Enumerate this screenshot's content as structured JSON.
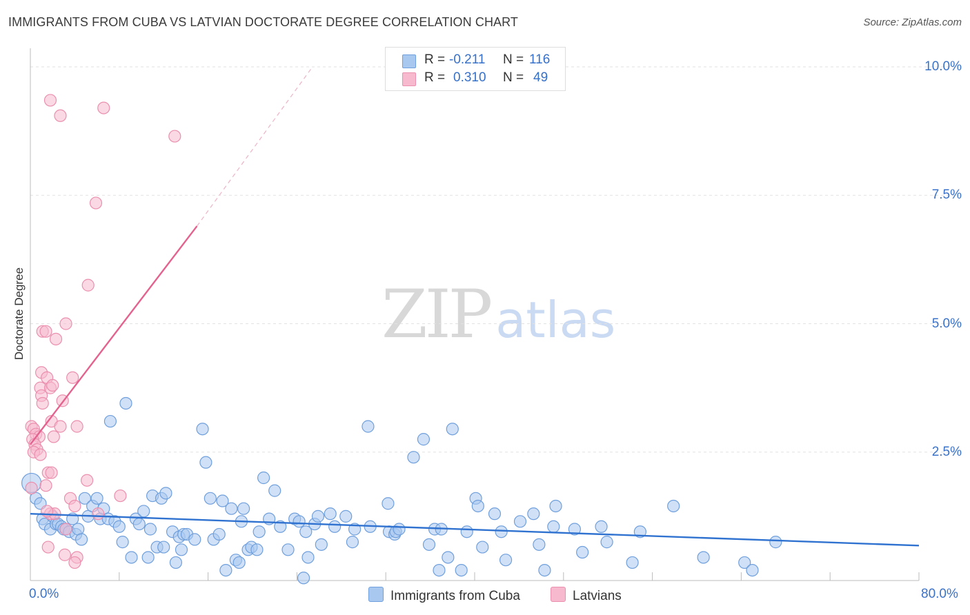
{
  "header": {
    "title": "IMMIGRANTS FROM CUBA VS LATVIAN DOCTORATE DEGREE CORRELATION CHART",
    "source": "Source: ZipAtlas.com"
  },
  "watermark": {
    "zip": "ZIP",
    "atlas": "atlas"
  },
  "legend": {
    "r_label": "R =",
    "n_label": "N =",
    "rows": [
      {
        "r": "-0.211",
        "n": "116",
        "color": "#a9c8f0"
      },
      {
        "r": "0.310",
        "n": "49",
        "color": "#f7b9cd"
      }
    ]
  },
  "series_labels": {
    "cuba": "Immigrants from Cuba",
    "latvians": "Latvians"
  },
  "colors": {
    "cuba_fill": "#a9c8f0",
    "cuba_stroke": "#6f9fdc",
    "cuba_line": "#2f72d0",
    "latvian_fill": "#f7b9cd",
    "latvian_stroke": "#ea8fae",
    "latvian_line": "#e3628f",
    "tick_text": "#3a72c8"
  },
  "chart_data": {
    "type": "scatter",
    "title": "IMMIGRANTS FROM CUBA VS LATVIAN DOCTORATE DEGREE CORRELATION CHART",
    "xlabel": "",
    "ylabel": "Doctorate Degree",
    "xlim": [
      0,
      80
    ],
    "ylim": [
      0,
      10.2
    ],
    "x_tick_labels": {
      "min": "0.0%",
      "max": "80.0%"
    },
    "y_ticks": [
      {
        "value": 2.5,
        "label": "2.5%"
      },
      {
        "value": 5.0,
        "label": "5.0%"
      },
      {
        "value": 7.5,
        "label": "7.5%"
      },
      {
        "value": 10.0,
        "label": "10.0%"
      }
    ],
    "grid": true,
    "series": [
      {
        "name": "Immigrants from Cuba",
        "r": -0.211,
        "n": 116,
        "trend": {
          "x0": 0,
          "y0": 1.3,
          "x1": 80,
          "y1": 0.68
        },
        "points": [
          [
            0.1,
            1.9
          ],
          [
            0.5,
            1.6
          ],
          [
            0.9,
            1.5
          ],
          [
            1.1,
            1.2
          ],
          [
            1.3,
            1.1
          ],
          [
            1.8,
            1.0
          ],
          [
            2.0,
            1.25
          ],
          [
            2.3,
            1.1
          ],
          [
            2.5,
            1.1
          ],
          [
            2.8,
            1.05
          ],
          [
            3.0,
            1.0
          ],
          [
            3.2,
            1.0
          ],
          [
            3.5,
            0.95
          ],
          [
            3.8,
            1.2
          ],
          [
            4.1,
            0.9
          ],
          [
            4.3,
            1.0
          ],
          [
            4.6,
            0.8
          ],
          [
            4.9,
            1.6
          ],
          [
            5.2,
            1.25
          ],
          [
            5.6,
            1.45
          ],
          [
            6.0,
            1.6
          ],
          [
            6.3,
            1.2
          ],
          [
            6.6,
            1.4
          ],
          [
            7.0,
            1.2
          ],
          [
            7.2,
            3.1
          ],
          [
            7.6,
            1.15
          ],
          [
            8.0,
            1.05
          ],
          [
            8.3,
            0.75
          ],
          [
            8.6,
            3.45
          ],
          [
            9.1,
            0.45
          ],
          [
            9.5,
            1.2
          ],
          [
            9.8,
            1.1
          ],
          [
            10.2,
            1.35
          ],
          [
            10.6,
            0.45
          ],
          [
            10.8,
            1.0
          ],
          [
            11.0,
            1.65
          ],
          [
            11.4,
            0.65
          ],
          [
            11.8,
            1.6
          ],
          [
            12.0,
            0.65
          ],
          [
            12.2,
            1.7
          ],
          [
            12.8,
            0.95
          ],
          [
            13.1,
            0.35
          ],
          [
            13.4,
            0.85
          ],
          [
            13.6,
            0.6
          ],
          [
            13.8,
            0.9
          ],
          [
            14.1,
            0.9
          ],
          [
            14.8,
            0.8
          ],
          [
            15.5,
            2.95
          ],
          [
            15.8,
            2.3
          ],
          [
            16.2,
            1.6
          ],
          [
            16.5,
            0.8
          ],
          [
            17.0,
            0.9
          ],
          [
            17.3,
            1.55
          ],
          [
            17.6,
            0.2
          ],
          [
            18.1,
            1.4
          ],
          [
            18.5,
            0.4
          ],
          [
            18.8,
            0.35
          ],
          [
            19.0,
            1.15
          ],
          [
            19.2,
            1.4
          ],
          [
            19.6,
            0.6
          ],
          [
            19.9,
            0.65
          ],
          [
            20.4,
            0.6
          ],
          [
            20.6,
            0.95
          ],
          [
            21.0,
            2.0
          ],
          [
            21.5,
            1.2
          ],
          [
            22.0,
            1.75
          ],
          [
            22.5,
            1.05
          ],
          [
            23.2,
            0.6
          ],
          [
            23.8,
            1.2
          ],
          [
            24.2,
            1.15
          ],
          [
            24.6,
            0.05
          ],
          [
            24.8,
            0.95
          ],
          [
            25.0,
            0.45
          ],
          [
            25.6,
            1.1
          ],
          [
            25.9,
            1.25
          ],
          [
            26.2,
            0.7
          ],
          [
            27.0,
            1.3
          ],
          [
            27.4,
            1.05
          ],
          [
            29.0,
            0.75
          ],
          [
            28.4,
            1.25
          ],
          [
            29.2,
            1.0
          ],
          [
            30.4,
            3.0
          ],
          [
            30.6,
            1.05
          ],
          [
            32.3,
            0.95
          ],
          [
            32.8,
            0.9
          ],
          [
            32.2,
            1.5
          ],
          [
            32.9,
            0.95
          ],
          [
            33.2,
            1.0
          ],
          [
            34.5,
            2.4
          ],
          [
            35.9,
            0.7
          ],
          [
            35.4,
            2.75
          ],
          [
            36.4,
            1.0
          ],
          [
            37.0,
            1.0
          ],
          [
            36.8,
            0.2
          ],
          [
            37.6,
            0.45
          ],
          [
            38.0,
            2.95
          ],
          [
            39.3,
            0.95
          ],
          [
            38.8,
            0.2
          ],
          [
            40.1,
            1.6
          ],
          [
            40.7,
            0.65
          ],
          [
            40.3,
            1.45
          ],
          [
            41.8,
            1.3
          ],
          [
            42.4,
            0.95
          ],
          [
            42.8,
            0.4
          ],
          [
            44.1,
            1.15
          ],
          [
            45.3,
            1.3
          ],
          [
            45.8,
            0.7
          ],
          [
            46.3,
            0.2
          ],
          [
            47.1,
            1.05
          ],
          [
            47.3,
            1.45
          ],
          [
            49.0,
            1.0
          ],
          [
            49.7,
            0.55
          ],
          [
            51.4,
            1.05
          ],
          [
            51.9,
            0.75
          ],
          [
            54.9,
            0.95
          ],
          [
            54.2,
            0.35
          ],
          [
            57.9,
            1.45
          ],
          [
            60.6,
            0.45
          ],
          [
            64.3,
            0.35
          ],
          [
            65.0,
            0.2
          ],
          [
            67.1,
            0.75
          ]
        ]
      },
      {
        "name": "Latvians",
        "r": 0.31,
        "n": 49,
        "trend": {
          "x0": 0,
          "y0": 2.65,
          "x1": 15.0,
          "y1": 6.9
        },
        "trend_extension": {
          "x0": 15.0,
          "y0": 6.9,
          "x1": 25.4,
          "y1": 10.0
        },
        "points": [
          [
            1.8,
            9.35
          ],
          [
            2.7,
            9.05
          ],
          [
            6.6,
            9.2
          ],
          [
            13.0,
            8.65
          ],
          [
            5.9,
            7.35
          ],
          [
            5.2,
            5.75
          ],
          [
            1.1,
            4.85
          ],
          [
            1.4,
            4.85
          ],
          [
            2.3,
            4.7
          ],
          [
            3.2,
            5.0
          ],
          [
            1.0,
            4.05
          ],
          [
            1.5,
            3.95
          ],
          [
            0.9,
            3.75
          ],
          [
            1.8,
            3.75
          ],
          [
            2.0,
            3.8
          ],
          [
            3.8,
            3.95
          ],
          [
            1.0,
            3.6
          ],
          [
            1.1,
            3.45
          ],
          [
            2.9,
            3.5
          ],
          [
            1.9,
            3.1
          ],
          [
            2.7,
            3.0
          ],
          [
            4.2,
            3.0
          ],
          [
            0.1,
            3.0
          ],
          [
            0.3,
            2.95
          ],
          [
            0.5,
            2.85
          ],
          [
            0.8,
            2.8
          ],
          [
            2.1,
            2.8
          ],
          [
            0.2,
            2.75
          ],
          [
            0.4,
            2.65
          ],
          [
            0.6,
            2.55
          ],
          [
            0.3,
            2.5
          ],
          [
            0.9,
            2.45
          ],
          [
            1.6,
            2.1
          ],
          [
            1.9,
            2.1
          ],
          [
            5.1,
            1.95
          ],
          [
            1.4,
            1.85
          ],
          [
            8.1,
            1.65
          ],
          [
            0.1,
            1.8
          ],
          [
            3.6,
            1.6
          ],
          [
            1.8,
            1.3
          ],
          [
            2.2,
            1.3
          ],
          [
            1.5,
            1.35
          ],
          [
            3.2,
            1.0
          ],
          [
            4.0,
            1.45
          ],
          [
            1.6,
            0.65
          ],
          [
            3.1,
            0.5
          ],
          [
            4.2,
            0.45
          ],
          [
            4.0,
            0.35
          ],
          [
            6.1,
            1.3
          ]
        ]
      }
    ]
  }
}
